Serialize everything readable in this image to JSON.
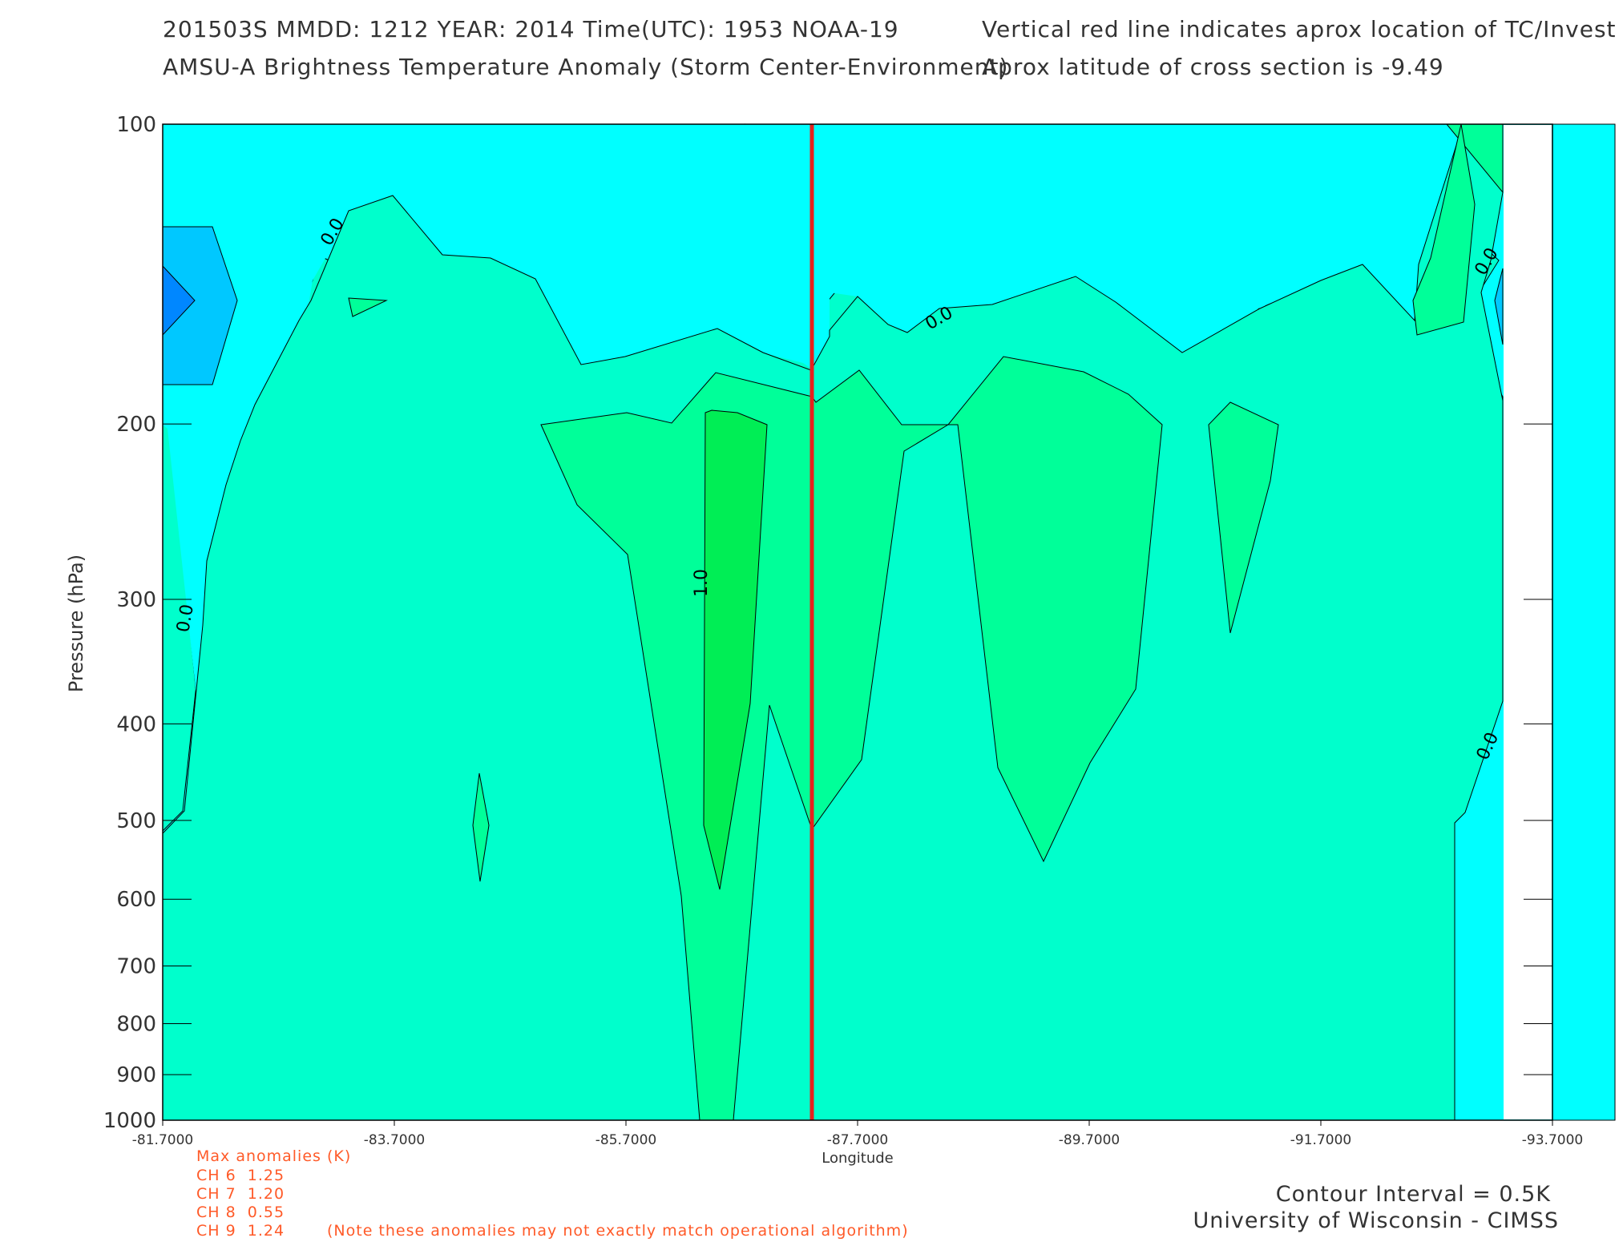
{
  "header": {
    "line1_left": "201503S  MMDD: 1212 YEAR: 2014 Time(UTC): 1953 NOAA-19",
    "line2_left": "AMSU-A Brightness Temperature Anomaly (Storm Center-Environment)",
    "line1_right": "Vertical red line indicates aprox location of TC/Invest",
    "line2_right": "Aprox latitude of cross section is -9.49"
  },
  "chart_data": {
    "type": "contour",
    "xlabel": "Longitude",
    "ylabel": "Pressure (hPa)",
    "x_ticks": [
      "-81.7000",
      "-83.7000",
      "-85.7000",
      "-87.7000",
      "-89.7000",
      "-91.7000",
      "-93.7000"
    ],
    "x_range": [
      -81.7,
      -93.7
    ],
    "y_ticks": [
      "100",
      "200",
      "300",
      "400",
      "500",
      "600",
      "700",
      "800",
      "900",
      "1000"
    ],
    "y_range": [
      1000,
      100
    ],
    "y_scale": "log",
    "contour_labels": [
      "0.0",
      "0.0",
      "0.0",
      "0.0",
      "0.0",
      "1.0"
    ],
    "storm_center_longitude": -87.3,
    "storm_line_color": "#e8201c",
    "fill_colors": {
      "-1.0": "#0087ff",
      "-0.5": "#00c8ff",
      "0.0": "#00ffff",
      "0.5": "#00ffcc",
      "1.0": "#00ff99",
      "1.5": "#00ee55"
    }
  },
  "max_anomalies": {
    "title": "Max anomalies (K)",
    "rows": [
      "CH 6  1.25",
      "CH 7  1.20",
      "CH 8  0.55",
      "CH 9  1.24"
    ],
    "note": "(Note these anomalies may not exactly match operational algorithm)"
  },
  "footer": {
    "contour_interval": "Contour Interval = 0.5K",
    "credit": "University of Wisconsin - CIMSS"
  }
}
